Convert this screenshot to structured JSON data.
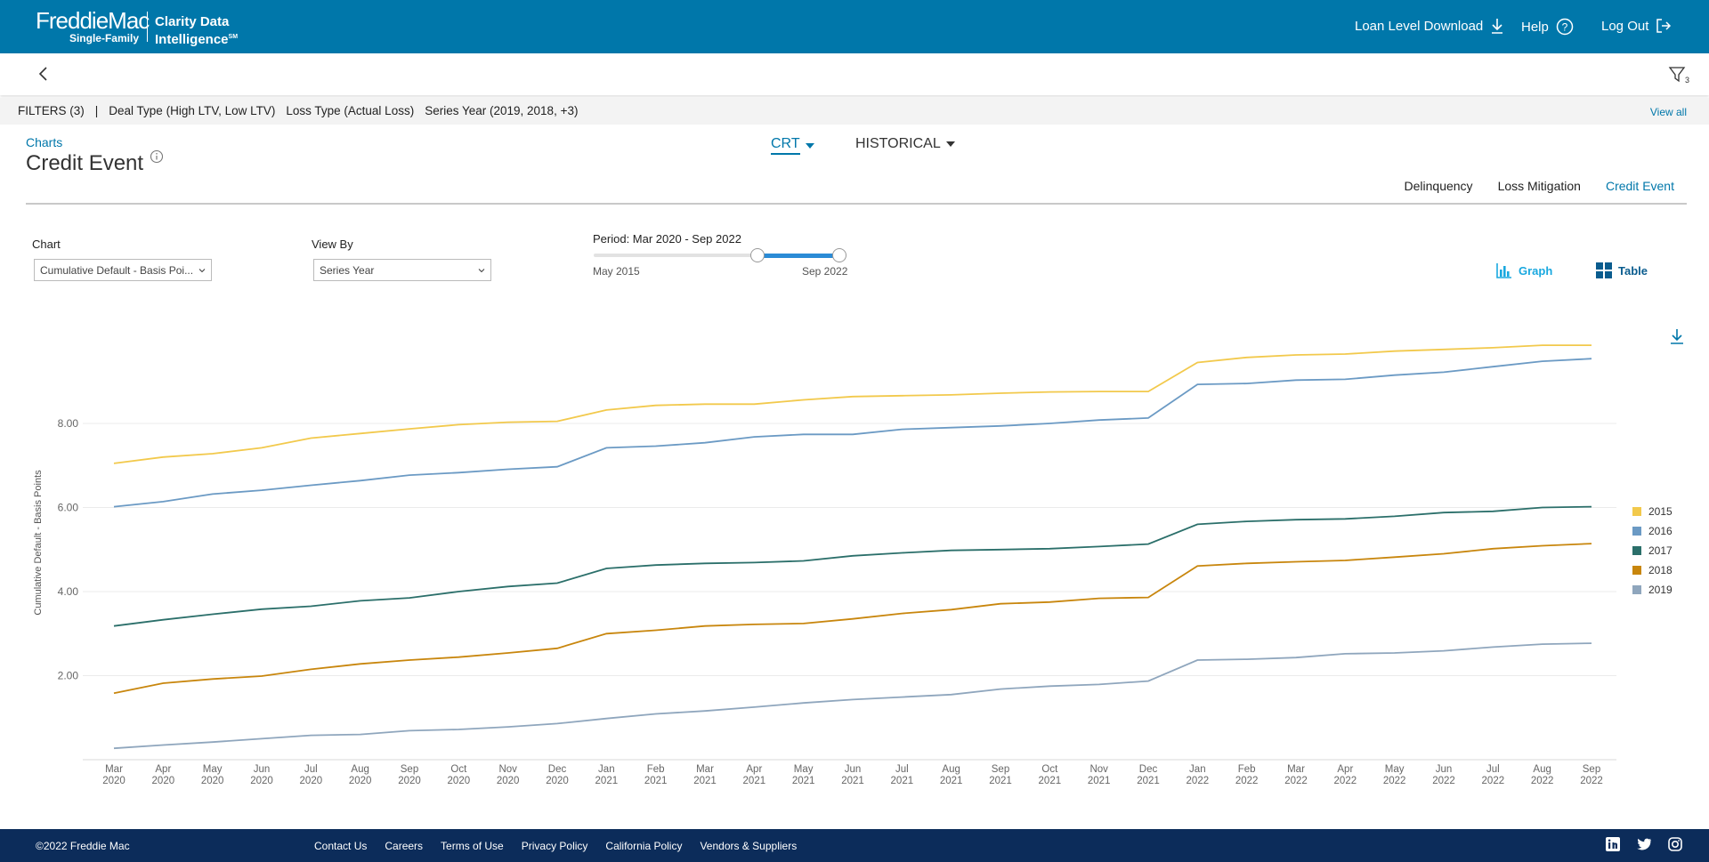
{
  "header": {
    "brand": "FreddieMac",
    "brand_sub": "Single-Family",
    "product_line1": "Clarity Data",
    "product_line2": "Intelligence",
    "product_mark": "SM",
    "nav": [
      {
        "label": "Loan Level Download",
        "icon": "download-icon"
      },
      {
        "label": "Help",
        "icon": "help-icon"
      },
      {
        "label": "Log Out",
        "icon": "logout-icon"
      }
    ]
  },
  "subbar": {
    "back_icon": "chevron-left-icon",
    "filter_icon": "filter-icon",
    "filter_count": "3"
  },
  "filters": {
    "summary": "FILTERS (3)",
    "separator": "|",
    "items": [
      "Deal Type (High LTV, Low LTV)",
      "Loss Type (Actual Loss)",
      "Series Year (2019, 2018, +3)"
    ],
    "view_all": "View all"
  },
  "page": {
    "breadcrumb": "Charts",
    "title": "Credit Event",
    "info_icon": "info-icon",
    "dropdown_crt": "CRT",
    "dropdown_historical": "HISTORICAL",
    "tabs": [
      {
        "label": "Delinquency",
        "active": false
      },
      {
        "label": "Loss Mitigation",
        "active": false
      },
      {
        "label": "Credit Event",
        "active": true
      }
    ]
  },
  "controls": {
    "chart_label": "Chart",
    "chart_value": "Cumulative Default - Basis Poi...",
    "viewby_label": "View By",
    "viewby_value": "Series Year",
    "period_label": "Period: Mar 2020 - Sep 2022",
    "slider_min": "May 2015",
    "slider_max": "Sep 2022",
    "slider_selected_start": 0.75,
    "slider_selected_end": 1.0,
    "graph_label": "Graph",
    "table_label": "Table",
    "download_icon": "download-icon"
  },
  "chart_data": {
    "type": "line",
    "title": "",
    "xlabel": "",
    "ylabel": "Cumulative Default - Basis Points",
    "ylim": [
      0,
      10
    ],
    "yticks": [
      "2.00",
      "4.00",
      "6.00",
      "8.00"
    ],
    "ytick_values": [
      2,
      4,
      6,
      8
    ],
    "grid": true,
    "legend_position": "right",
    "x": [
      [
        "Mar",
        "2020"
      ],
      [
        "Apr",
        "2020"
      ],
      [
        "May",
        "2020"
      ],
      [
        "Jun",
        "2020"
      ],
      [
        "Jul",
        "2020"
      ],
      [
        "Aug",
        "2020"
      ],
      [
        "Sep",
        "2020"
      ],
      [
        "Oct",
        "2020"
      ],
      [
        "Nov",
        "2020"
      ],
      [
        "Dec",
        "2020"
      ],
      [
        "Jan",
        "2021"
      ],
      [
        "Feb",
        "2021"
      ],
      [
        "Mar",
        "2021"
      ],
      [
        "Apr",
        "2021"
      ],
      [
        "May",
        "2021"
      ],
      [
        "Jun",
        "2021"
      ],
      [
        "Jul",
        "2021"
      ],
      [
        "Aug",
        "2021"
      ],
      [
        "Sep",
        "2021"
      ],
      [
        "Oct",
        "2021"
      ],
      [
        "Nov",
        "2021"
      ],
      [
        "Dec",
        "2021"
      ],
      [
        "Jan",
        "2022"
      ],
      [
        "Feb",
        "2022"
      ],
      [
        "Mar",
        "2022"
      ],
      [
        "Apr",
        "2022"
      ],
      [
        "May",
        "2022"
      ],
      [
        "Jun",
        "2022"
      ],
      [
        "Jul",
        "2022"
      ],
      [
        "Aug",
        "2022"
      ],
      [
        "Sep",
        "2022"
      ]
    ],
    "series": [
      {
        "name": "2015",
        "color": "#f2c94c",
        "values": [
          7.05,
          7.2,
          7.28,
          7.42,
          7.65,
          7.76,
          7.87,
          7.97,
          8.03,
          8.05,
          8.32,
          8.43,
          8.46,
          8.46,
          8.56,
          8.64,
          8.66,
          8.68,
          8.72,
          8.75,
          8.76,
          8.76,
          9.45,
          9.57,
          9.63,
          9.65,
          9.72,
          9.76,
          9.8,
          9.86,
          9.86
        ]
      },
      {
        "name": "2016",
        "color": "#6b9ac4",
        "values": [
          6.02,
          6.14,
          6.32,
          6.41,
          6.53,
          6.64,
          6.77,
          6.83,
          6.91,
          6.97,
          7.42,
          7.46,
          7.54,
          7.68,
          7.74,
          7.74,
          7.86,
          7.9,
          7.94,
          8.0,
          8.08,
          8.13,
          8.93,
          8.95,
          9.03,
          9.05,
          9.15,
          9.22,
          9.35,
          9.48,
          9.54
        ]
      },
      {
        "name": "2017",
        "color": "#2b6f6a",
        "values": [
          3.18,
          3.33,
          3.46,
          3.58,
          3.65,
          3.78,
          3.85,
          4.0,
          4.12,
          4.2,
          4.55,
          4.63,
          4.67,
          4.69,
          4.73,
          4.85,
          4.92,
          4.98,
          5.0,
          5.02,
          5.07,
          5.13,
          5.6,
          5.67,
          5.71,
          5.73,
          5.79,
          5.88,
          5.91,
          6.0,
          6.02
        ]
      },
      {
        "name": "2018",
        "color": "#c8860d",
        "values": [
          1.58,
          1.82,
          1.92,
          1.99,
          2.15,
          2.28,
          2.37,
          2.44,
          2.54,
          2.65,
          3.0,
          3.08,
          3.18,
          3.22,
          3.24,
          3.35,
          3.48,
          3.57,
          3.71,
          3.75,
          3.84,
          3.86,
          4.61,
          4.67,
          4.71,
          4.74,
          4.82,
          4.9,
          5.02,
          5.09,
          5.14
        ]
      },
      {
        "name": "2019",
        "color": "#8fa6bd",
        "values": [
          0.27,
          0.35,
          0.42,
          0.5,
          0.58,
          0.6,
          0.69,
          0.72,
          0.78,
          0.86,
          0.98,
          1.09,
          1.16,
          1.25,
          1.35,
          1.43,
          1.49,
          1.55,
          1.68,
          1.75,
          1.79,
          1.87,
          2.37,
          2.39,
          2.43,
          2.52,
          2.54,
          2.59,
          2.68,
          2.75,
          2.77
        ]
      }
    ]
  },
  "footer": {
    "copyright": "©2022 Freddie Mac",
    "links": [
      "Contact Us",
      "Careers",
      "Terms of Use",
      "Privacy Policy",
      "California Policy",
      "Vendors & Suppliers"
    ],
    "social": [
      "linkedin-icon",
      "twitter-icon",
      "instagram-icon"
    ]
  }
}
